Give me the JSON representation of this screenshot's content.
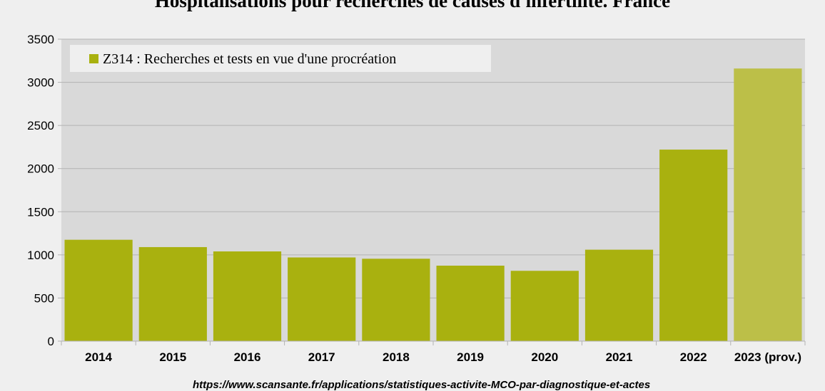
{
  "chart_data": {
    "type": "bar",
    "title": "Hospitalisations pour recherches de causes d'infertilité. France",
    "categories": [
      "2014",
      "2015",
      "2016",
      "2017",
      "2018",
      "2019",
      "2020",
      "2021",
      "2022",
      "2023 (prov.)"
    ],
    "series": [
      {
        "name": "Z314 : Recherches et tests en vue d'une procréation",
        "values": [
          1175,
          1090,
          1040,
          970,
          955,
          875,
          815,
          1060,
          2220,
          3160
        ],
        "color": "#a9b10f"
      }
    ],
    "highlight": {
      "index": 9,
      "color": "#bcbf48"
    },
    "ylim": [
      0,
      3500
    ],
    "yticks": [
      0,
      500,
      1000,
      1500,
      2000,
      2500,
      3000,
      3500
    ],
    "grid": true,
    "legend_position": "top-left",
    "plot_background": "#d9d9d9",
    "source": "https://www.scansante.fr/applications/statistiques-activite-MCO-par-diagnostique-et-actes"
  }
}
